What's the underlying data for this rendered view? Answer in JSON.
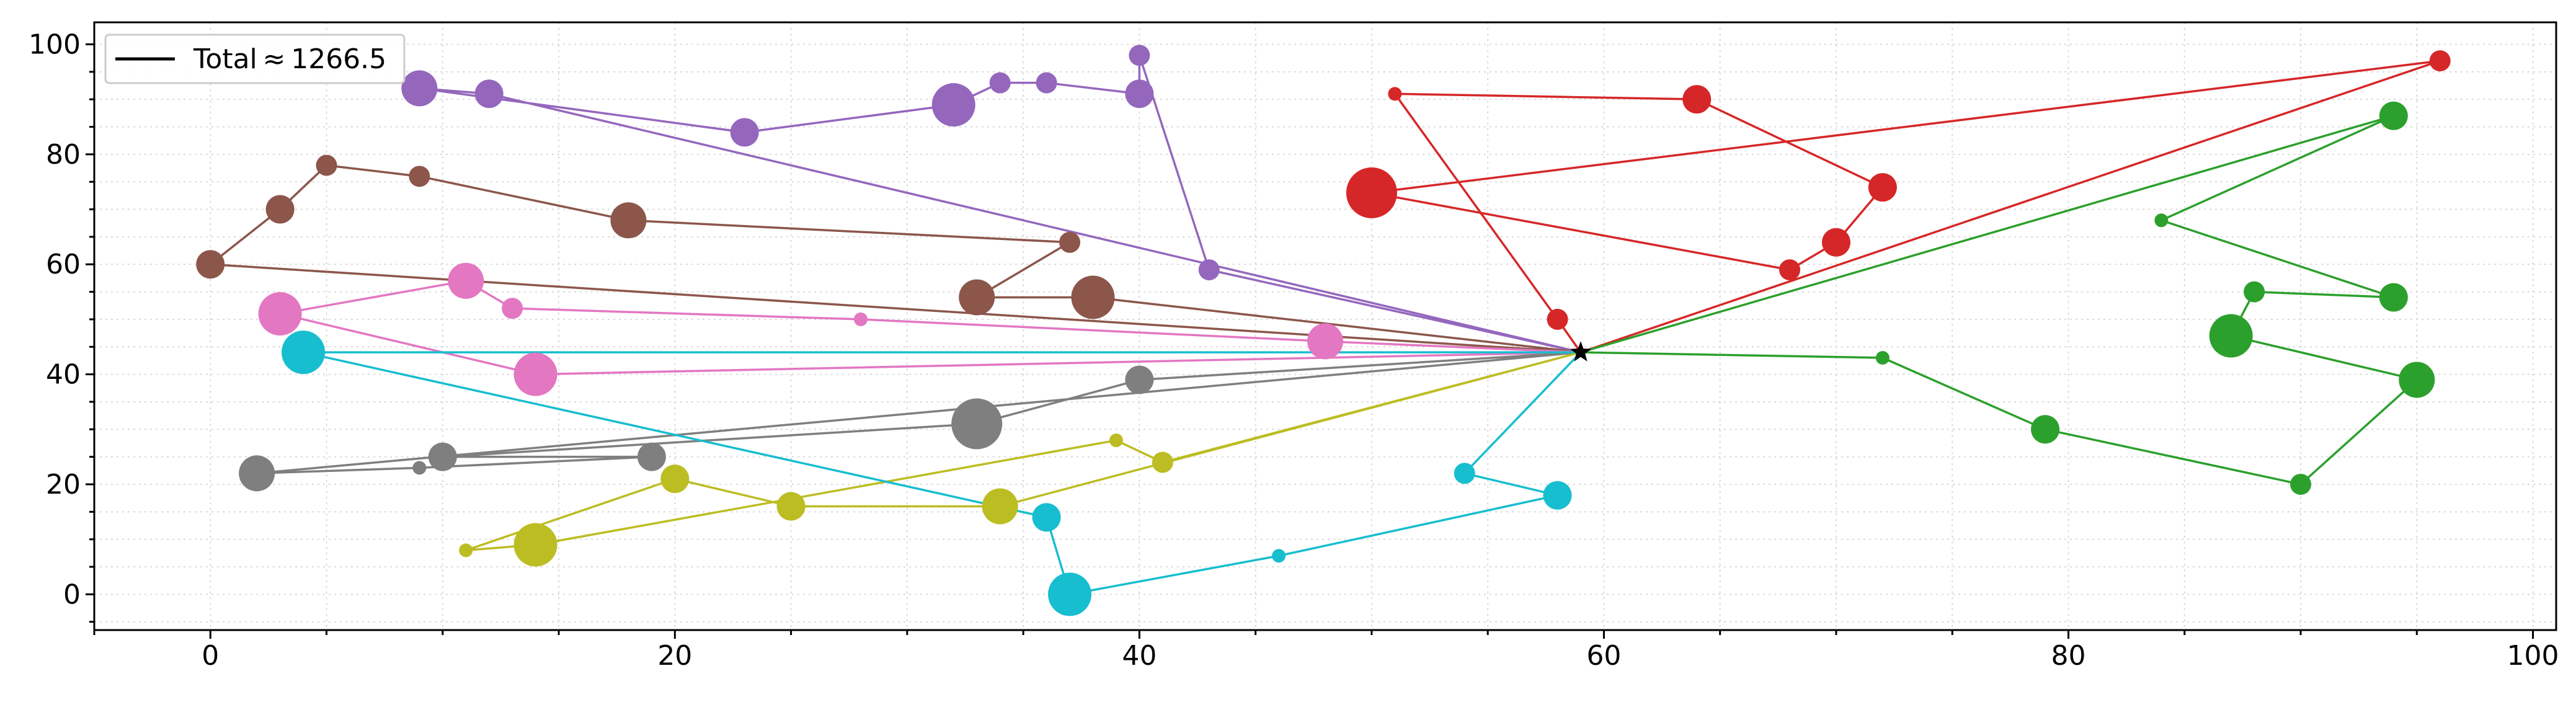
{
  "chart_data": {
    "type": "line",
    "title": "",
    "xlabel": "",
    "ylabel": "",
    "xlim": [
      -5,
      101
    ],
    "ylim": [
      -6.5,
      104
    ],
    "x_ticks": [
      0,
      20,
      40,
      60,
      80,
      100
    ],
    "y_ticks": [
      0,
      20,
      40,
      60,
      80,
      100
    ],
    "x_tick_labels": [
      "0",
      "20",
      "40",
      "60",
      "80",
      100
    ],
    "y_tick_labels": [
      "0",
      "20",
      "40",
      "60",
      "80",
      "100"
    ],
    "grid": true,
    "grid_style": "dotted",
    "legend": {
      "position": "top-left",
      "entries": [
        {
          "label": "Total ≈ 1266.5",
          "color": "#000000"
        }
      ]
    },
    "depot": {
      "x": 59,
      "y": 44,
      "marker": "star",
      "color": "#000000"
    },
    "routes": [
      {
        "color": "#d62728",
        "points": [
          [
            59,
            44
          ],
          [
            58,
            50
          ],
          [
            51,
            91
          ],
          [
            64,
            90
          ],
          [
            72,
            74
          ],
          [
            70,
            64
          ],
          [
            68,
            59
          ],
          [
            50,
            73
          ],
          [
            96,
            97
          ],
          [
            59,
            44
          ]
        ],
        "sizes": [
          null,
          2,
          1,
          3,
          3,
          3,
          2,
          6,
          2,
          null
        ]
      },
      {
        "color": "#2ca02c",
        "points": [
          [
            59,
            44
          ],
          [
            94,
            87
          ],
          [
            84,
            68
          ],
          [
            94,
            54
          ],
          [
            88,
            55
          ],
          [
            87,
            47
          ],
          [
            95,
            39
          ],
          [
            90,
            20
          ],
          [
            79,
            30
          ],
          [
            72,
            43
          ],
          [
            59,
            44
          ]
        ],
        "sizes": [
          null,
          3,
          1,
          3,
          2,
          5,
          4,
          2,
          3,
          1,
          null
        ]
      },
      {
        "color": "#9467bd",
        "points": [
          [
            59,
            44
          ],
          [
            43,
            59
          ],
          [
            40,
            98
          ],
          [
            40,
            91
          ],
          [
            36,
            93
          ],
          [
            34,
            93
          ],
          [
            32,
            89
          ],
          [
            23,
            84
          ],
          [
            9,
            92
          ],
          [
            12,
            91
          ],
          [
            59,
            44
          ]
        ],
        "sizes": [
          null,
          2,
          2,
          3,
          2,
          2,
          5,
          3,
          4,
          3,
          null
        ]
      },
      {
        "color": "#8c564b",
        "points": [
          [
            59,
            44
          ],
          [
            38,
            54
          ],
          [
            33,
            54
          ],
          [
            37,
            64
          ],
          [
            18,
            68
          ],
          [
            9,
            76
          ],
          [
            5,
            78
          ],
          [
            3,
            70
          ],
          [
            0,
            60
          ],
          [
            59,
            44
          ]
        ],
        "sizes": [
          null,
          5,
          4,
          2,
          4,
          2,
          2,
          3,
          3,
          null
        ]
      },
      {
        "color": "#e377c2",
        "points": [
          [
            59,
            44
          ],
          [
            48,
            46
          ],
          [
            28,
            50
          ],
          [
            13,
            52
          ],
          [
            11,
            57
          ],
          [
            3,
            51
          ],
          [
            14,
            40
          ],
          [
            59,
            44
          ]
        ],
        "sizes": [
          null,
          4,
          1,
          2,
          4,
          5,
          5,
          null
        ]
      },
      {
        "color": "#7f7f7f",
        "points": [
          [
            59,
            44
          ],
          [
            40,
            39
          ],
          [
            33,
            31
          ],
          [
            10,
            25
          ],
          [
            19,
            25
          ],
          [
            9,
            23
          ],
          [
            2,
            22
          ],
          [
            59,
            44
          ]
        ],
        "sizes": [
          null,
          3,
          6,
          3,
          3,
          1,
          4,
          null
        ]
      },
      {
        "color": "#bcbd22",
        "points": [
          [
            59,
            44
          ],
          [
            41,
            24
          ],
          [
            39,
            28
          ],
          [
            14,
            9
          ],
          [
            11,
            8
          ],
          [
            20,
            21
          ],
          [
            25,
            16
          ],
          [
            34,
            16
          ],
          [
            59,
            44
          ]
        ],
        "sizes": [
          null,
          2,
          1,
          5,
          1,
          3,
          3,
          4,
          null
        ]
      },
      {
        "color": "#17becf",
        "points": [
          [
            59,
            44
          ],
          [
            54,
            22
          ],
          [
            58,
            18
          ],
          [
            46,
            7
          ],
          [
            37,
            0
          ],
          [
            36,
            14
          ],
          [
            4,
            44
          ],
          [
            59,
            44
          ]
        ],
        "sizes": [
          null,
          2,
          3,
          1,
          5,
          3,
          5,
          null
        ]
      }
    ]
  }
}
